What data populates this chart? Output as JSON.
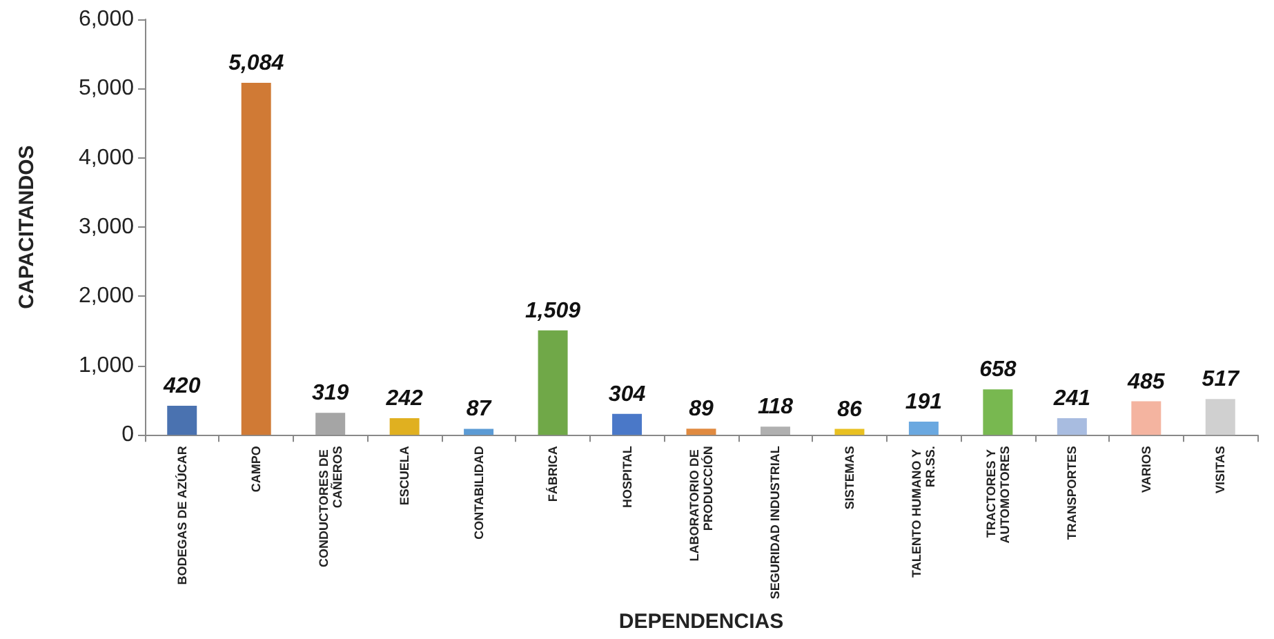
{
  "chart_data": {
    "type": "bar",
    "xlabel": "DEPENDENCIAS",
    "ylabel": "CAPACITANDOS",
    "categories": [
      "BODEGAS DE AZÚCAR",
      "CAMPO",
      "CONDUCTORES DE CAÑEROS",
      "ESCUELA",
      "CONTABILIDAD",
      "FÁBRICA",
      "HOSPITAL",
      "LABORATORIO DE PRODUCCIÓN",
      "SEGURIDAD INDUSTRIAL",
      "SISTEMAS",
      "TALENTO HUMANO Y RR.SS.",
      "TRACTORES Y AUTOMOTORES",
      "TRANSPORTES",
      "VARIOS",
      "VISITAS"
    ],
    "values": [
      420,
      5084,
      319,
      242,
      87,
      1509,
      304,
      89,
      118,
      86,
      191,
      658,
      241,
      485,
      517
    ],
    "value_labels": [
      "420",
      "5,084",
      "319",
      "242",
      "87",
      "1,509",
      "304",
      "89",
      "118",
      "86",
      "191",
      "658",
      "241",
      "485",
      "517"
    ],
    "colors": [
      "#4a72b0",
      "#d07a35",
      "#a5a5a5",
      "#e0b020",
      "#5b9bd5",
      "#70a848",
      "#4a78c8",
      "#e08a40",
      "#b0b0b0",
      "#e8c020",
      "#6aa8e0",
      "#78b850",
      "#a8bce0",
      "#f4b4a0",
      "#d0d0d0"
    ],
    "ylim": [
      0,
      6000
    ],
    "yticks": [
      {
        "value": 0,
        "label": "0"
      },
      {
        "value": 1000,
        "label": "1,000"
      },
      {
        "value": 2000,
        "label": "2,000"
      },
      {
        "value": 3000,
        "label": "3,000"
      },
      {
        "value": 4000,
        "label": "4,000"
      },
      {
        "value": 5000,
        "label": "5,000"
      },
      {
        "value": 6000,
        "label": "6,000"
      }
    ],
    "grid": false
  }
}
